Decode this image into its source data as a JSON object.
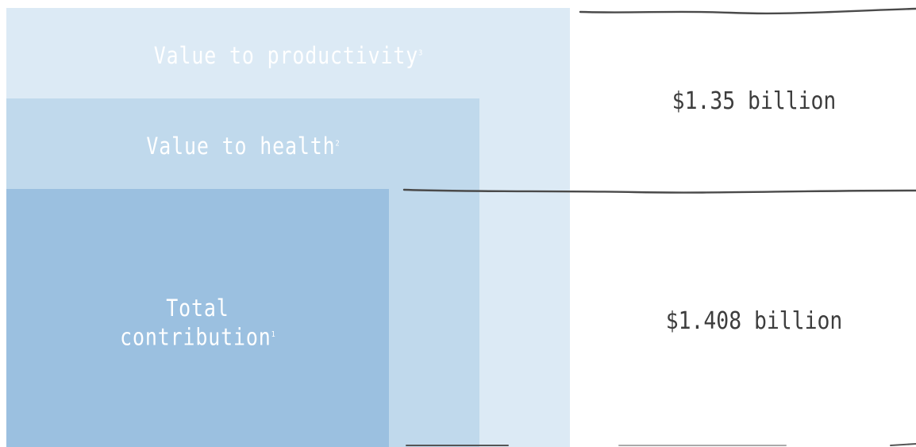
{
  "layers": [
    {
      "label": "Value to productivity",
      "note": "3",
      "color": "#dceaf5"
    },
    {
      "label": "Value to health",
      "note": "2",
      "color": "#c0d9ec"
    },
    {
      "label_line1": "Total",
      "label_line2": "contribution",
      "note": "1",
      "color": "#9bc0e0"
    }
  ],
  "values": {
    "top": "$1.35 billion",
    "bottom": "$1.408 billion"
  },
  "colors": {
    "label_text": "#ffffff",
    "value_text": "#3d3d3d",
    "rule": "#4a4a4a"
  }
}
